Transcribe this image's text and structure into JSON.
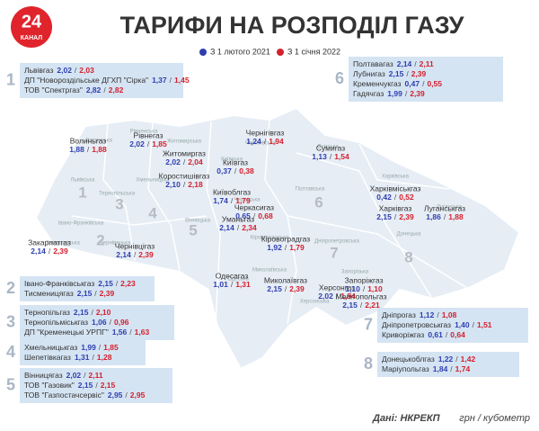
{
  "header": {
    "logo_number": "24",
    "logo_text": "КАНАЛ",
    "title": "ТАРИФИ НА РОЗПОДІЛ ГАЗУ"
  },
  "legend": [
    {
      "label": "З 1 лютого 2021",
      "color": "#2f3fb0"
    },
    {
      "label": "З 1 січня 2022",
      "color": "#d4212e"
    }
  ],
  "separator": "/",
  "groups": [
    {
      "number": "1",
      "items": [
        {
          "name": "Львівгаз",
          "old": "2,02",
          "new": "2,03"
        },
        {
          "name": "ДП \"Новороздільське ДГХП \"Сірка\"",
          "old": "1,37",
          "new": "1,45"
        },
        {
          "name": "ТОВ \"Спектргаз\"",
          "old": "2,82",
          "new": "2,82"
        }
      ]
    },
    {
      "number": "6",
      "items": [
        {
          "name": "Полтавагаз",
          "old": "2,14",
          "new": "2,11"
        },
        {
          "name": "Лубнигаз",
          "old": "2,15",
          "new": "2,39"
        },
        {
          "name": "Кременчукгаз",
          "old": "0,47",
          "new": "0,55"
        },
        {
          "name": "Гадячгаз",
          "old": "1,99",
          "new": "2,39"
        }
      ]
    },
    {
      "number": "2",
      "items": [
        {
          "name": "Івано-Франківськгаз",
          "old": "2,15",
          "new": "2,23"
        },
        {
          "name": "Тисменицягаз",
          "old": "2,15",
          "new": "2,39"
        }
      ]
    },
    {
      "number": "3",
      "items": [
        {
          "name": "Тернопільгаз",
          "old": "2,15",
          "new": "2,10"
        },
        {
          "name": "Тернопільміськгаз",
          "old": "1,06",
          "new": "0,96"
        },
        {
          "name": "ДП \"Кременецькі УРПГ\"",
          "old": "1,56",
          "new": "1,63"
        }
      ]
    },
    {
      "number": "4",
      "items": [
        {
          "name": "Хмельницькгаз",
          "old": "1,99",
          "new": "1,85"
        },
        {
          "name": "Шепетівкагаз",
          "old": "1,31",
          "new": "1,28"
        }
      ]
    },
    {
      "number": "5",
      "items": [
        {
          "name": "Вінницягаз",
          "old": "2,02",
          "new": "2,11"
        },
        {
          "name": "ТОВ \"Газовик\"",
          "old": "2,15",
          "new": "2,15"
        },
        {
          "name": "ТОВ \"Газпостачсервіс\"",
          "old": "2,95",
          "new": "2,95"
        }
      ]
    },
    {
      "number": "7",
      "items": [
        {
          "name": "Дніпрогаз",
          "old": "1,12",
          "new": "1,08"
        },
        {
          "name": "Дніпропетровськгаз",
          "old": "1,40",
          "new": "1,51"
        },
        {
          "name": "Криворіжгаз",
          "old": "0,61",
          "new": "0,64"
        }
      ]
    },
    {
      "number": "8",
      "items": [
        {
          "name": "Донецькоблгаз",
          "old": "1,22",
          "new": "1,42"
        },
        {
          "name": "Маріупольгаз",
          "old": "1,84",
          "new": "1,74"
        }
      ]
    }
  ],
  "map_labels": [
    {
      "name": "Волиньгаз",
      "old": "1,88",
      "new": "1,88"
    },
    {
      "name": "Рівнегаз",
      "old": "2,02",
      "new": "1,85"
    },
    {
      "name": "Житомиргаз",
      "old": "2,02",
      "new": "2,04"
    },
    {
      "name": "Коростишівгаз",
      "old": "2,10",
      "new": "2,18"
    },
    {
      "name": "Київгаз",
      "old": "0,37",
      "new": "0,38"
    },
    {
      "name": "Київоблгаз",
      "old": "1,74",
      "new": "1,79"
    },
    {
      "name": "Черкасигаз",
      "old": "0,65",
      "new": "0,68"
    },
    {
      "name": "Уманьгаз",
      "old": "2,14",
      "new": "2,34"
    },
    {
      "name": "Чернігівгаз",
      "old": "1,24",
      "new": "1,94"
    },
    {
      "name": "Сумигаз",
      "old": "1,13",
      "new": "1,54"
    },
    {
      "name": "Харківміськгаз",
      "old": "0,42",
      "new": "0,52"
    },
    {
      "name": "Харківгаз",
      "old": "2,15",
      "new": "2,39"
    },
    {
      "name": "Луганськгаз",
      "old": "1,86",
      "new": "1,88"
    },
    {
      "name": "Кіровоградгаз",
      "old": "1,92",
      "new": "1,79"
    },
    {
      "name": "Закарпатгаз",
      "old": "2,14",
      "new": "2,39"
    },
    {
      "name": "Чернівцігаз",
      "old": "2,14",
      "new": "2,39"
    },
    {
      "name": "Одесагаз",
      "old": "1,01",
      "new": "1,31"
    },
    {
      "name": "Миколаївгаз",
      "old": "2,15",
      "new": "2,39"
    },
    {
      "name": "Херсонгаз",
      "old": "2,02",
      "new": "1,94"
    },
    {
      "name": "Запоріжгаз",
      "old": "1,10",
      "new": "1,10"
    },
    {
      "name": "Мелітопольгаз",
      "old": "2,15",
      "new": "2,21"
    }
  ],
  "region_numbers": [
    "1",
    "2",
    "3",
    "4",
    "5",
    "6",
    "7",
    "8"
  ],
  "region_names": [
    "Волинська",
    "Рівненська",
    "Житомирська",
    "Чернігівська",
    "Сумська",
    "Київська",
    "Харківська",
    "Луганська",
    "Полтавська",
    "Черкаська",
    "Донецька",
    "Дніпропетровська",
    "Запорізька",
    "Херсонська",
    "Миколаївська",
    "Одеська",
    "Кіровоградська",
    "Вінницька",
    "Хмельницька",
    "Тернопільська",
    "Львівська",
    "Івано-Франківська",
    "Закарпатська",
    "Чернівецька"
  ],
  "source": "Дані: НКРЕКП",
  "unit": "грн / кубометр"
}
